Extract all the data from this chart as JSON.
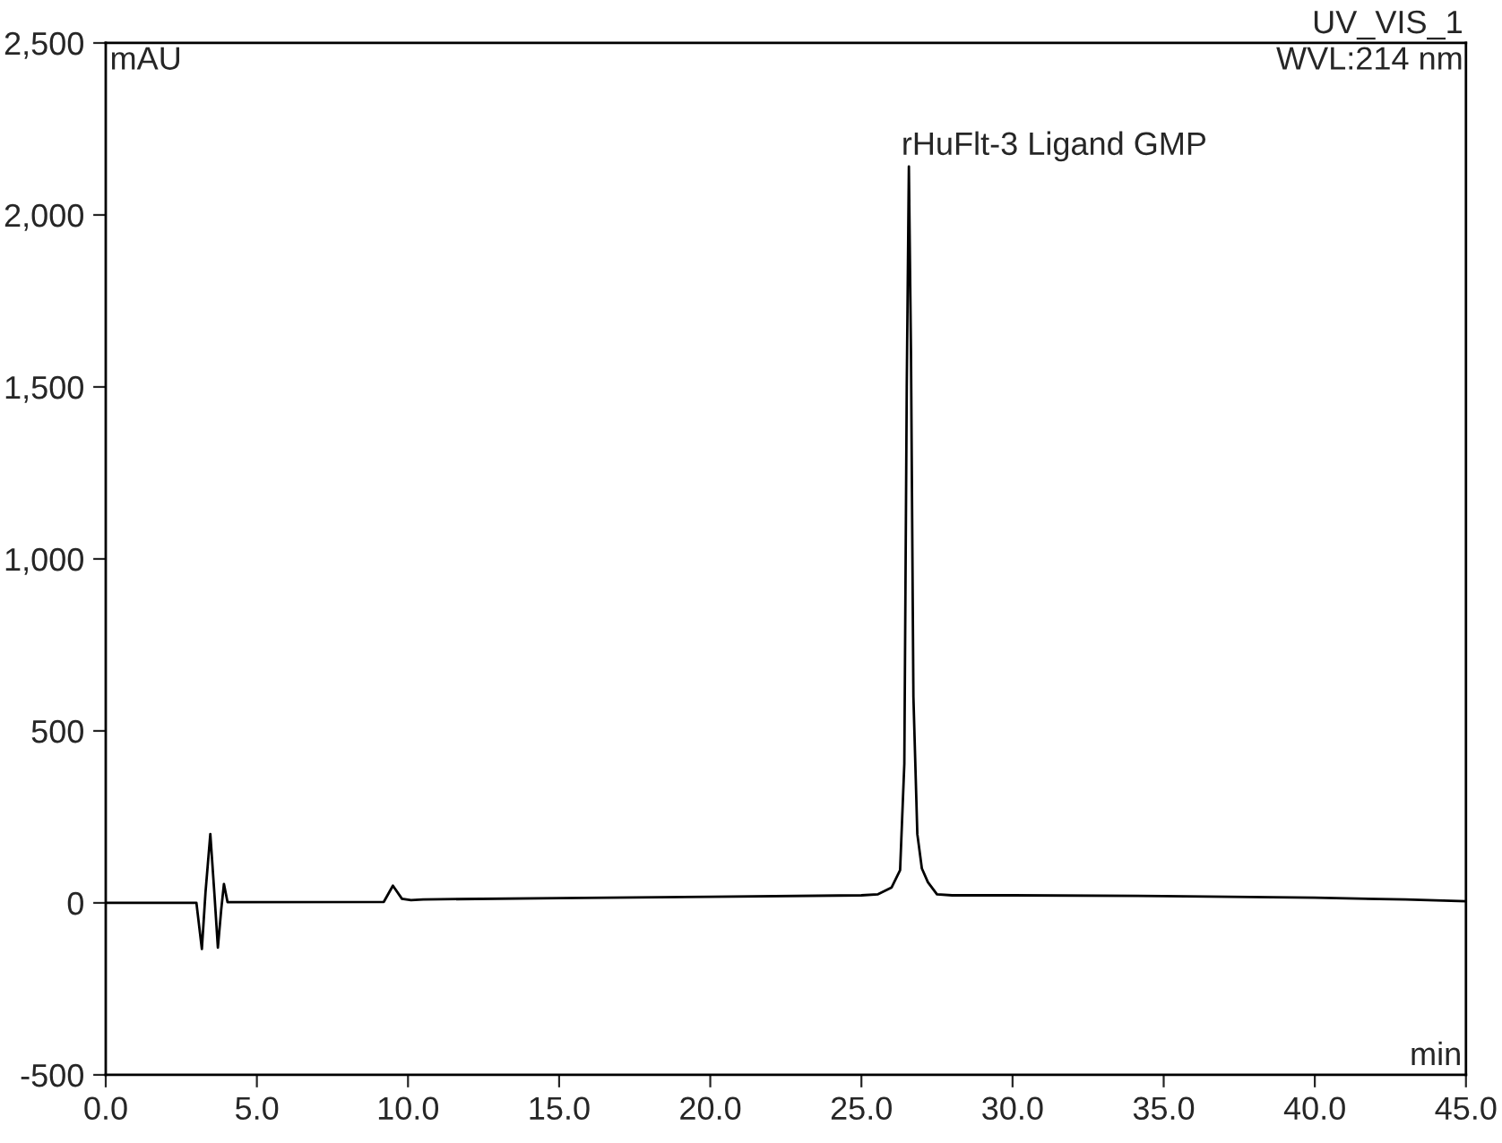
{
  "chart_data": {
    "type": "line",
    "xlabel": "min",
    "ylabel": "mAU",
    "x": [
      0,
      3.0,
      3.18,
      3.3,
      3.46,
      3.6,
      3.71,
      3.82,
      3.91,
      4.03,
      9.2,
      9.5,
      9.8,
      10.1,
      10.5,
      15,
      20,
      25,
      25.55,
      26.0,
      26.28,
      26.42,
      26.5,
      26.57,
      26.64,
      26.72,
      26.85,
      27.0,
      27.2,
      27.5,
      28,
      30,
      35,
      40,
      43,
      45
    ],
    "series": [
      {
        "color": "#000000",
        "values": [
          0,
          0,
          -134,
          30,
          200,
          20,
          -130,
          -20,
          55,
          2,
          3,
          50,
          12,
          8,
          10,
          14,
          18,
          22,
          25,
          45,
          95,
          405,
          1500,
          2141,
          1600,
          600,
          200,
          100,
          60,
          25,
          22,
          22,
          20,
          15,
          10,
          5
        ]
      }
    ],
    "xlim": [
      0,
      45
    ],
    "ylim": [
      -500,
      2500
    ],
    "xticks": [
      {
        "value": 0,
        "label": "0.0"
      },
      {
        "value": 5,
        "label": "5.0"
      },
      {
        "value": 10,
        "label": "10.0"
      },
      {
        "value": 15,
        "label": "15.0"
      },
      {
        "value": 20,
        "label": "20.0"
      },
      {
        "value": 25,
        "label": "25.0"
      },
      {
        "value": 30,
        "label": "30.0"
      },
      {
        "value": 35,
        "label": "35.0"
      },
      {
        "value": 40,
        "label": "40.0"
      },
      {
        "value": 45,
        "label": "45.0"
      }
    ],
    "yticks": [
      -500,
      0,
      500,
      {
        "value": 1000,
        "label": "1,000"
      },
      {
        "value": 1500,
        "label": "1,500"
      },
      {
        "value": 2000,
        "label": "2,000"
      },
      {
        "value": 2500,
        "label": "2,500"
      }
    ],
    "grid": false,
    "legend": false,
    "marker": "none",
    "line_style": "solid",
    "annotations": [
      "UV_VIS_1",
      "WVL:214 nm",
      {
        "text": "rHuFlt-3 Ligand GMP",
        "x": 26.57,
        "y": 2141
      }
    ]
  }
}
